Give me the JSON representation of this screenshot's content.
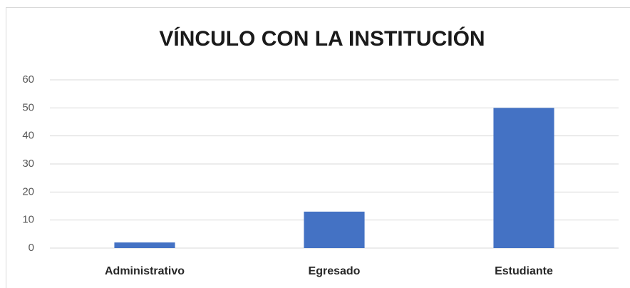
{
  "chart_data": {
    "type": "bar",
    "title": "VÍNCULO CON LA INSTITUCIÓN",
    "categories": [
      "Administrativo",
      "Egresado",
      "Estudiante"
    ],
    "values": [
      2,
      13,
      50
    ],
    "color": "#4472c4",
    "ylim": [
      0,
      60
    ],
    "yticks": [
      0,
      10,
      20,
      30,
      40,
      50,
      60
    ],
    "grid": true
  }
}
